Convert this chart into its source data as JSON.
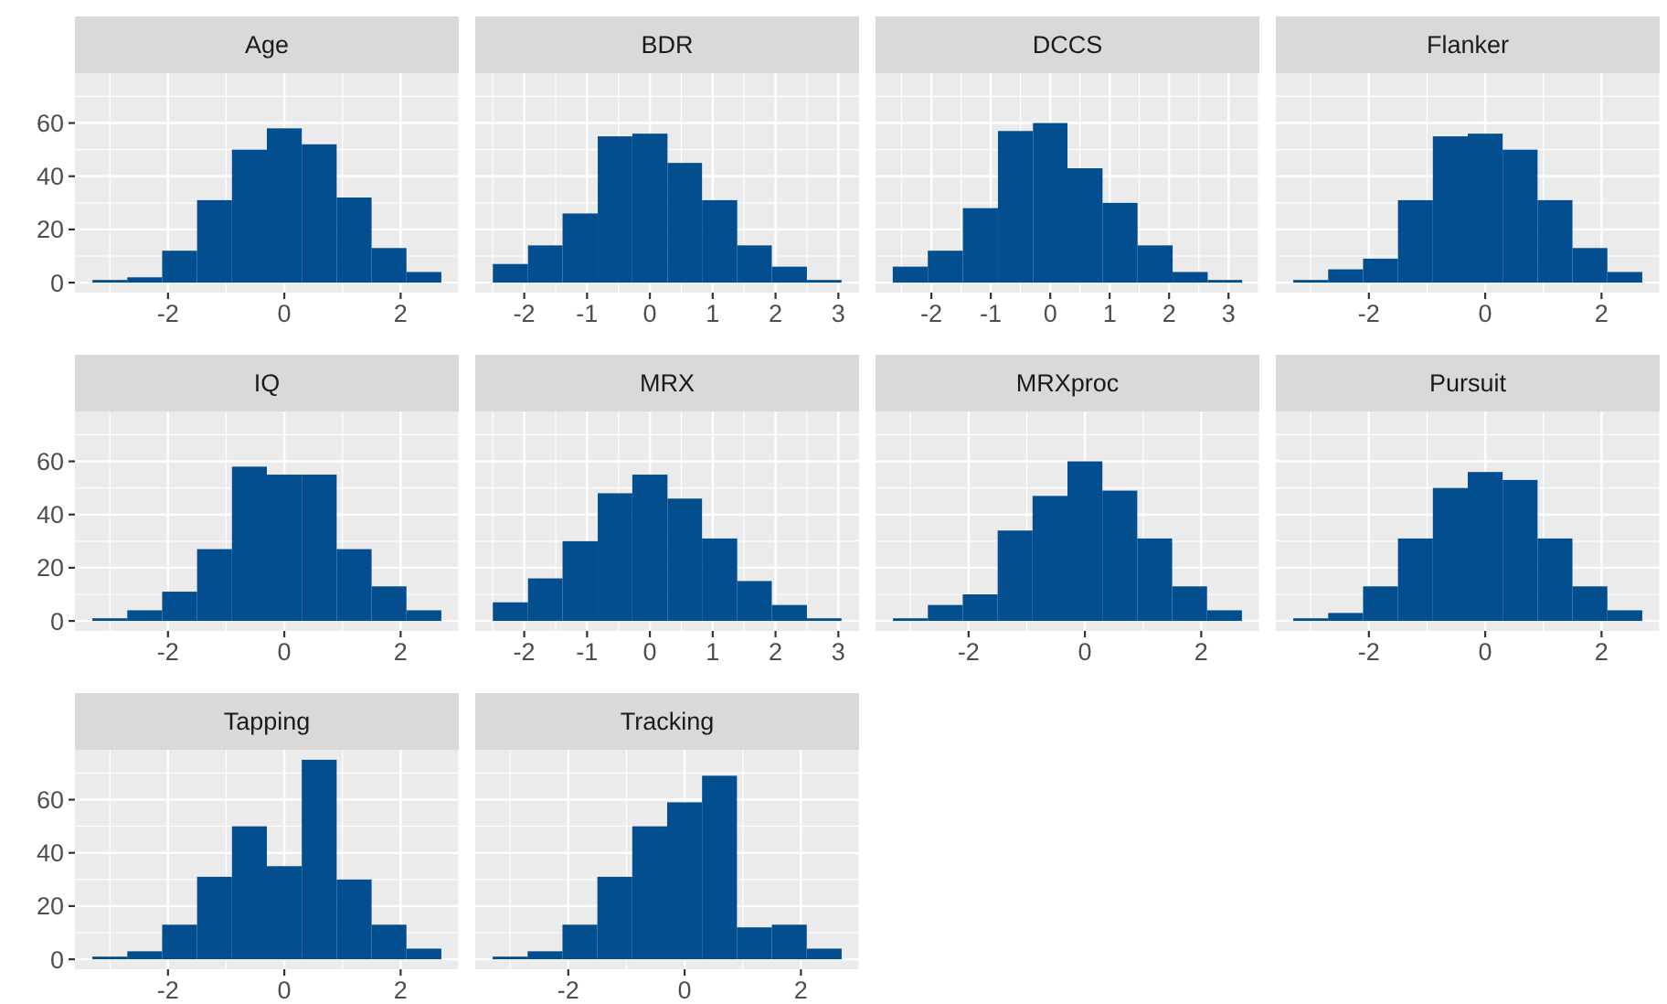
{
  "chart_data": [
    {
      "type": "histogram",
      "title": "Age",
      "bins": [
        -3.3,
        -2.7,
        -2.1,
        -1.5,
        -0.9,
        -0.3,
        0.3,
        0.9,
        1.5,
        2.1,
        2.7
      ],
      "values": [
        1,
        2,
        12,
        31,
        50,
        58,
        52,
        32,
        13,
        4
      ],
      "color": "#024e8f",
      "xlim": [
        -3.6,
        3.0
      ],
      "xticks": [
        -2,
        0,
        2
      ],
      "ylim": [
        -3.75,
        78.75
      ],
      "yticks": [
        0,
        20,
        40,
        60
      ],
      "grid": true
    },
    {
      "type": "histogram",
      "title": "BDR",
      "bins": [
        -2.5,
        -1.94,
        -1.39,
        -0.83,
        -0.28,
        0.28,
        0.83,
        1.39,
        1.94,
        2.5,
        3.05
      ],
      "values": [
        7,
        14,
        26,
        55,
        56,
        45,
        31,
        14,
        6,
        1
      ],
      "color": "#024e8f",
      "xlim": [
        -2.78,
        3.33
      ],
      "xticks": [
        -2,
        -1,
        0,
        1,
        2,
        3
      ],
      "ylim": [
        -3.75,
        78.75
      ],
      "yticks": [
        0,
        20,
        40,
        60
      ],
      "grid": true,
      "tick_labels": "x"
    },
    {
      "type": "histogram",
      "title": "DCCS",
      "bins": [
        -2.65,
        -2.06,
        -1.47,
        -0.88,
        -0.29,
        0.29,
        0.88,
        1.47,
        2.06,
        2.65,
        3.23
      ],
      "values": [
        6,
        12,
        28,
        57,
        60,
        43,
        30,
        14,
        4,
        1
      ],
      "color": "#024e8f",
      "xlim": [
        -2.94,
        3.52
      ],
      "xticks": [
        -2,
        -1,
        0,
        1,
        2,
        3
      ],
      "ylim": [
        -3.75,
        78.75
      ],
      "yticks": [
        0,
        20,
        40,
        60
      ],
      "grid": true,
      "tick_labels": "x"
    },
    {
      "type": "histogram",
      "title": "Flanker",
      "bins": [
        -3.3,
        -2.7,
        -2.1,
        -1.5,
        -0.9,
        -0.3,
        0.3,
        0.9,
        1.5,
        2.1,
        2.7
      ],
      "values": [
        1,
        5,
        9,
        31,
        55,
        56,
        50,
        31,
        13,
        4
      ],
      "color": "#024e8f",
      "xlim": [
        -3.6,
        3.0
      ],
      "xticks": [
        -2,
        0,
        2
      ],
      "ylim": [
        -3.75,
        78.75
      ],
      "yticks": [
        0,
        20,
        40,
        60
      ],
      "grid": true,
      "tick_labels": "x"
    },
    {
      "type": "histogram",
      "title": "IQ",
      "bins": [
        -3.3,
        -2.7,
        -2.1,
        -1.5,
        -0.9,
        -0.3,
        0.3,
        0.9,
        1.5,
        2.1,
        2.7
      ],
      "values": [
        1,
        4,
        11,
        27,
        58,
        55,
        55,
        27,
        13,
        4
      ],
      "color": "#024e8f",
      "xlim": [
        -3.6,
        3.0
      ],
      "xticks": [
        -2,
        0,
        2
      ],
      "ylim": [
        -3.75,
        78.75
      ],
      "yticks": [
        0,
        20,
        40,
        60
      ],
      "grid": true
    },
    {
      "type": "histogram",
      "title": "MRX",
      "bins": [
        -2.5,
        -1.94,
        -1.39,
        -0.83,
        -0.28,
        0.28,
        0.83,
        1.39,
        1.94,
        2.5,
        3.05
      ],
      "values": [
        7,
        16,
        30,
        48,
        55,
        46,
        31,
        15,
        6,
        1
      ],
      "color": "#024e8f",
      "xlim": [
        -2.78,
        3.33
      ],
      "xticks": [
        -2,
        -1,
        0,
        1,
        2,
        3
      ],
      "ylim": [
        -3.75,
        78.75
      ],
      "yticks": [
        0,
        20,
        40,
        60
      ],
      "grid": true,
      "tick_labels": "x"
    },
    {
      "type": "histogram",
      "title": "MRXproc",
      "bins": [
        -3.3,
        -2.7,
        -2.1,
        -1.5,
        -0.9,
        -0.3,
        0.3,
        0.9,
        1.5,
        2.1,
        2.7
      ],
      "values": [
        1,
        6,
        10,
        34,
        47,
        60,
        49,
        31,
        13,
        4
      ],
      "color": "#024e8f",
      "xlim": [
        -3.6,
        3.0
      ],
      "xticks": [
        -2,
        0,
        2
      ],
      "ylim": [
        -3.75,
        78.75
      ],
      "yticks": [
        0,
        20,
        40,
        60
      ],
      "grid": true,
      "tick_labels": "x"
    },
    {
      "type": "histogram",
      "title": "Pursuit",
      "bins": [
        -3.3,
        -2.7,
        -2.1,
        -1.5,
        -0.9,
        -0.3,
        0.3,
        0.9,
        1.5,
        2.1,
        2.7
      ],
      "values": [
        1,
        3,
        13,
        31,
        50,
        56,
        53,
        31,
        13,
        4
      ],
      "color": "#024e8f",
      "xlim": [
        -3.6,
        3.0
      ],
      "xticks": [
        -2,
        0,
        2
      ],
      "ylim": [
        -3.75,
        78.75
      ],
      "yticks": [
        0,
        20,
        40,
        60
      ],
      "grid": true,
      "tick_labels": "x"
    },
    {
      "type": "histogram",
      "title": "Tapping",
      "bins": [
        -3.3,
        -2.7,
        -2.1,
        -1.5,
        -0.9,
        -0.3,
        0.3,
        0.9,
        1.5,
        2.1,
        2.7
      ],
      "values": [
        1,
        3,
        13,
        31,
        50,
        35,
        75,
        30,
        13,
        4
      ],
      "color": "#024e8f",
      "xlim": [
        -3.6,
        3.0
      ],
      "xticks": [
        -2,
        0,
        2
      ],
      "ylim": [
        -3.75,
        78.75
      ],
      "yticks": [
        0,
        20,
        40,
        60
      ],
      "grid": true
    },
    {
      "type": "histogram",
      "title": "Tracking",
      "bins": [
        -3.3,
        -2.7,
        -2.1,
        -1.5,
        -0.9,
        -0.3,
        0.3,
        0.9,
        1.5,
        2.1,
        2.7
      ],
      "values": [
        1,
        3,
        13,
        31,
        50,
        59,
        69,
        12,
        13,
        4
      ],
      "color": "#024e8f",
      "xlim": [
        -3.6,
        3.0
      ],
      "xticks": [
        -2,
        0,
        2
      ],
      "ylim": [
        -3.75,
        78.75
      ],
      "yticks": [
        0,
        20,
        40,
        60
      ],
      "grid": true,
      "tick_labels": "x"
    }
  ]
}
